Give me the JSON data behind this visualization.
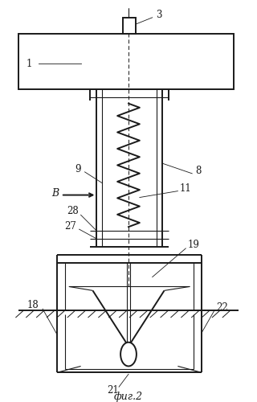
{
  "background_color": "#ffffff",
  "line_color": "#1a1a1a",
  "figsize": [
    3.2,
    5.0
  ],
  "dpi": 100,
  "caption": "фиг.2",
  "arrow_label": "В",
  "part_labels": [
    "1",
    "3",
    "8",
    "9",
    "11",
    "18",
    "19",
    "21",
    "22",
    "27",
    "28"
  ]
}
